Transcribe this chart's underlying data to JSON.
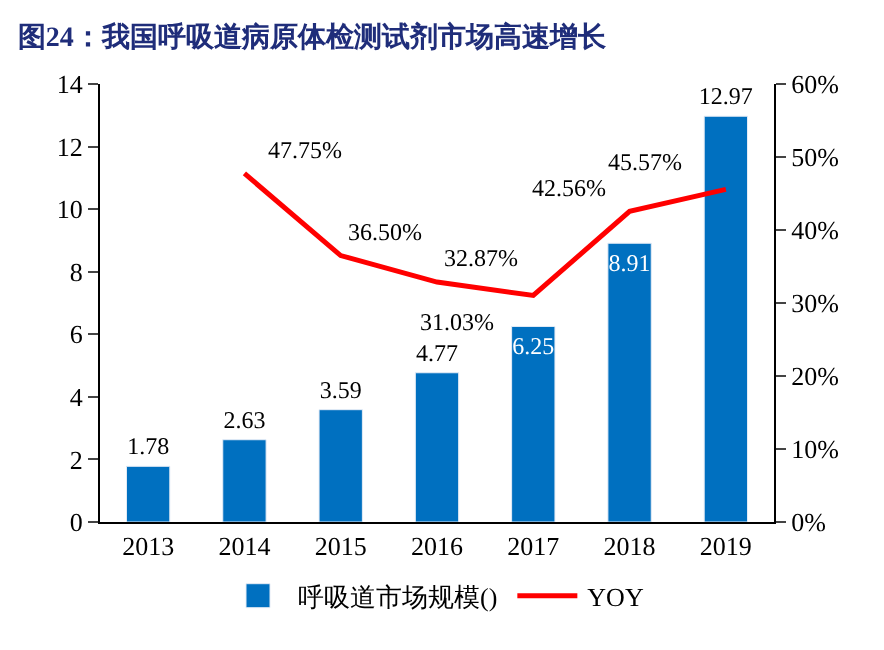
{
  "chart_data": {
    "type": "bar",
    "title": "图24：我国呼吸道病原体检测试剂市场高速增长",
    "categories": [
      "2013",
      "2014",
      "2015",
      "2016",
      "2017",
      "2018",
      "2019"
    ],
    "series": [
      {
        "name": "呼吸道市场规模()",
        "color": "#0070c0",
        "values": [
          1.78,
          2.63,
          3.59,
          4.77,
          6.25,
          8.91,
          12.97
        ],
        "data_labels": true
      },
      {
        "name": "YOY",
        "type": "line",
        "axis": "y2",
        "color": "#ff0000",
        "values": [
          null,
          47.75,
          36.5,
          32.87,
          31.03,
          42.56,
          45.57
        ],
        "value_labels": [
          null,
          "47.75%",
          "36.50%",
          "32.87%",
          "31.03%",
          "42.56%",
          "45.57%"
        ],
        "marker": "none",
        "line_style": "solid"
      }
    ],
    "ylim": [
      0,
      14
    ],
    "yticks": [
      0,
      2,
      4,
      6,
      8,
      10,
      12,
      14
    ],
    "y2lim": [
      0,
      60
    ],
    "y2ticks": [
      {
        "value": 0,
        "label": "0%"
      },
      {
        "value": 10,
        "label": "10%"
      },
      {
        "value": 20,
        "label": "20%"
      },
      {
        "value": 30,
        "label": "30%"
      },
      {
        "value": 40,
        "label": "40%"
      },
      {
        "value": 50,
        "label": "50%"
      },
      {
        "value": 60,
        "label": "60%"
      }
    ],
    "grid": false,
    "legend": "bottom"
  }
}
